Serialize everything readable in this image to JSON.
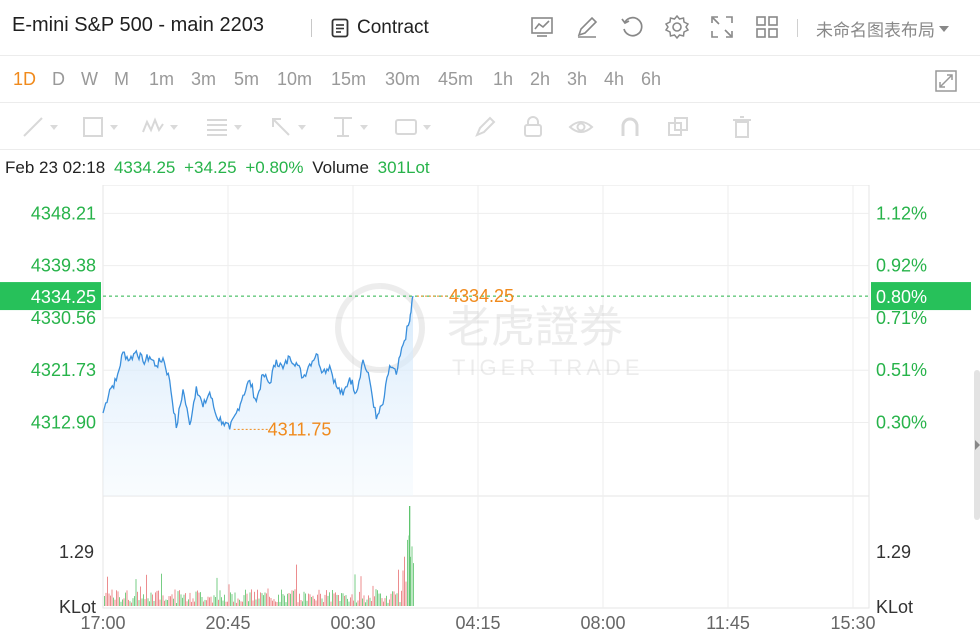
{
  "header": {
    "title": "E-mini S&P 500 - main 2203",
    "contract_label": "Contract",
    "icons": [
      "chart-indicator-icon",
      "draw-pen-icon",
      "refresh-icon",
      "settings-gear-icon",
      "expand-icon",
      "grid-layout-icon"
    ],
    "layout_label": "未命名图表布局"
  },
  "periods": [
    "1D",
    "D",
    "W",
    "M",
    "1m",
    "3m",
    "5m",
    "10m",
    "15m",
    "30m",
    "45m",
    "1h",
    "2h",
    "3h",
    "4h",
    "6h"
  ],
  "active_period": "1D",
  "drawing_tools": [
    "line-tool-icon",
    "rectangle-tool-icon",
    "wave-tool-icon",
    "fibonacci-tool-icon",
    "arrow-tool-icon",
    "measure-tool-icon",
    "price-label-tool-icon",
    "brush-icon",
    "lock-icon",
    "eye-icon",
    "magnet-icon",
    "copy-icon",
    "trash-icon"
  ],
  "info": {
    "datetime": "Feb 23 02:18",
    "price": "4334.25",
    "change": "+34.25",
    "change_pct": "+0.80%",
    "volume_label": "Volume",
    "volume_value": "301Lot"
  },
  "watermark": {
    "chinese": "老虎證券",
    "english": "TIGER TRADE"
  },
  "colors": {
    "up": "#27b34a",
    "price_line": "#3a8fdc",
    "orange": "#f08a1c",
    "current_bg": "#27c15a",
    "volume_up": "#5fc46e",
    "volume_down": "#e9787a"
  },
  "chart_data": {
    "type": "line",
    "title": "",
    "last_price": 4334.25,
    "last_price_label": "4334.25",
    "last_pct_label": "0.80%",
    "low_price_label": "4311.75",
    "y_ticks": [
      "4348.21",
      "4339.38",
      "4330.56",
      "4321.73",
      "4312.90"
    ],
    "y_tick_values": [
      4348.21,
      4339.38,
      4330.56,
      4321.73,
      4312.9
    ],
    "pct_ticks": [
      "1.12%",
      "0.92%",
      "0.71%",
      "0.51%",
      "0.30%"
    ],
    "x_ticks": [
      "17:00",
      "20:45",
      "00:30",
      "04:15",
      "08:00",
      "11:45",
      "15:30"
    ],
    "volume_ticks": [
      "1.29",
      "KLot"
    ],
    "ylim": [
      4300.5,
      4353.0
    ],
    "grid": true,
    "series": [
      {
        "hours_after_open": [
          0,
          0.2,
          0.4,
          0.6,
          0.8,
          1.0,
          1.2,
          1.4,
          1.6,
          1.8,
          2.0,
          2.2,
          2.4,
          2.6,
          2.8,
          3.0,
          3.2,
          3.4,
          3.6,
          3.8,
          4.0,
          4.2,
          4.4,
          4.6,
          4.8,
          5.0,
          5.2,
          5.4,
          5.6,
          5.8,
          6.0,
          6.2,
          6.4,
          6.6,
          6.8,
          7.0,
          7.2,
          7.4,
          7.6,
          7.8,
          8.0,
          8.2,
          8.4,
          8.6,
          8.8,
          9.0,
          9.2,
          9.3
        ],
        "values": [
          4314.5,
          4318.5,
          4320.0,
          4324.8,
          4323.5,
          4325.0,
          4323.2,
          4324.0,
          4322.5,
          4323.8,
          4320.0,
          4312.0,
          4318.5,
          4312.5,
          4319.0,
          4315.5,
          4318.0,
          4314.0,
          4313.0,
          4311.75,
          4314.5,
          4317.5,
          4320.0,
          4316.5,
          4321.0,
          4319.5,
          4323.5,
          4322.0,
          4324.0,
          4323.0,
          4320.5,
          4322.8,
          4324.5,
          4321.5,
          4322.5,
          4319.0,
          4317.5,
          4320.5,
          4318.0,
          4323.5,
          4320.0,
          4313.5,
          4316.0,
          4322.5,
          4321.0,
          4326.0,
          4330.0,
          4334.25
        ]
      }
    ],
    "volume": {
      "unit": "KLot",
      "max_label_value": 1.29
    }
  }
}
